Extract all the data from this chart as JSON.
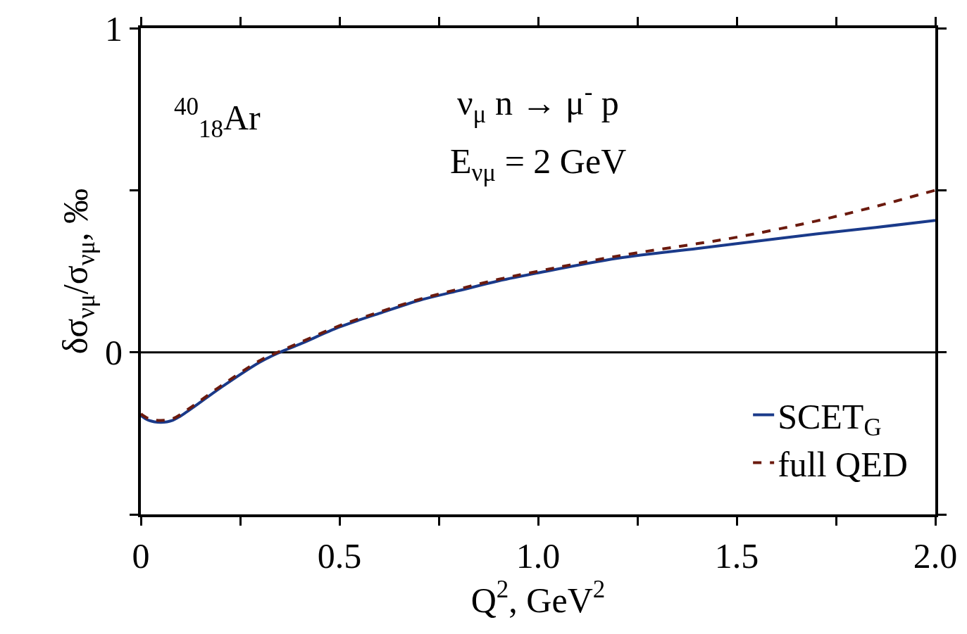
{
  "chart_data": {
    "type": "line",
    "xlabel": "Q$^{2}$, GeV$^{2}$",
    "ylabel": "δσ$_{νμ}$/σ$_{νμ}$, ‰",
    "annotations": [
      "$^{40}$$_{18}$Ar",
      "ν$_{μ}$ n → μ$^{-}$ p",
      "E$_{νμ}$ = 2 GeV"
    ],
    "xlim": [
      0,
      2.0
    ],
    "ylim": [
      -0.5,
      1
    ],
    "xticks": [
      0,
      {
        "value": 0.25,
        "label": null
      },
      0.5,
      {
        "value": 0.75,
        "label": null
      },
      "1.0",
      {
        "value": 1.25,
        "label": null
      },
      1.5,
      {
        "value": 1.75,
        "label": null
      },
      "2.0"
    ],
    "yticks": [
      {
        "value": -0.5,
        "label": null
      },
      0,
      {
        "value": 0.5,
        "label": null
      },
      1
    ],
    "legend": "bottom right",
    "grid": false,
    "ref_lines": [
      {
        "axis": "y",
        "value": 0,
        "label": null,
        "color": "#000000",
        "line_style": "solid"
      }
    ],
    "series": [
      {
        "name": "SCET$_{G}$",
        "color": "#1a3a8a",
        "line_style": "solid",
        "x": [
          0,
          0.02,
          0.05,
          0.08,
          0.12,
          0.2,
          0.3,
          0.35,
          0.4,
          0.5,
          0.6,
          0.7,
          0.8,
          0.9,
          1.0,
          1.2,
          1.4,
          1.5,
          1.7,
          1.85,
          2.0
        ],
        "values": [
          -0.195,
          -0.21,
          -0.216,
          -0.21,
          -0.18,
          -0.11,
          -0.03,
          0.0,
          0.025,
          0.078,
          0.12,
          0.16,
          0.19,
          0.22,
          0.245,
          0.29,
          0.32,
          0.335,
          0.365,
          0.385,
          0.407
        ]
      },
      {
        "name": "full QED",
        "color": "#6b1a0e",
        "line_style": "dashed",
        "x": [
          0,
          0.02,
          0.05,
          0.08,
          0.12,
          0.2,
          0.3,
          0.35,
          0.4,
          0.5,
          0.6,
          0.7,
          0.8,
          0.9,
          1.0,
          1.2,
          1.4,
          1.5,
          1.7,
          1.85,
          2.0
        ],
        "values": [
          -0.19,
          -0.205,
          -0.21,
          -0.205,
          -0.175,
          -0.105,
          -0.025,
          0.003,
          0.03,
          0.082,
          0.124,
          0.163,
          0.195,
          0.225,
          0.25,
          0.297,
          0.335,
          0.355,
          0.405,
          0.45,
          0.5
        ]
      }
    ]
  }
}
